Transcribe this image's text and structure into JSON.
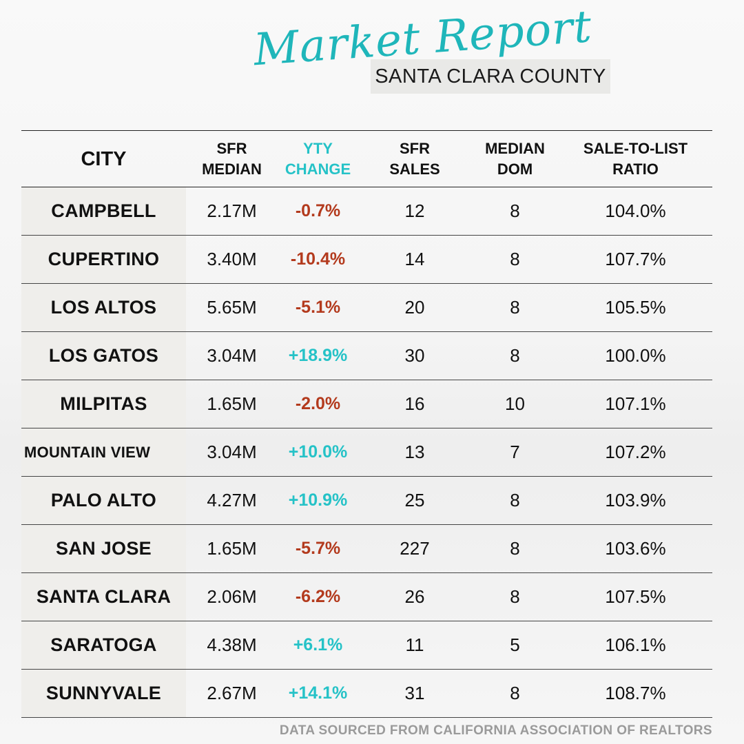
{
  "header": {
    "script_title": "Market Report",
    "subtitle": "SANTA CLARA COUNTY"
  },
  "columns": {
    "city": "CITY",
    "median_l1": "SFR",
    "median_l2": "MEDIAN",
    "yty_l1": "YTY",
    "yty_l2": "CHANGE",
    "sales_l1": "SFR",
    "sales_l2": "SALES",
    "dom_l1": "MEDIAN",
    "dom_l2": "DOM",
    "ratio_l1": "SALE-TO-LIST",
    "ratio_l2": "RATIO"
  },
  "rows": [
    {
      "city": "CAMPBELL",
      "median": "2.17M",
      "change": "-0.7%",
      "sales": "12",
      "dom": "8",
      "ratio": "104.0%"
    },
    {
      "city": "CUPERTINO",
      "median": "3.40M",
      "change": "-10.4%",
      "sales": "14",
      "dom": "8",
      "ratio": "107.7%"
    },
    {
      "city": "LOS ALTOS",
      "median": "5.65M",
      "change": "-5.1%",
      "sales": "20",
      "dom": "8",
      "ratio": "105.5%"
    },
    {
      "city": "LOS GATOS",
      "median": "3.04M",
      "change": "+18.9%",
      "sales": "30",
      "dom": "8",
      "ratio": "100.0%"
    },
    {
      "city": "MILPITAS",
      "median": "1.65M",
      "change": "-2.0%",
      "sales": "16",
      "dom": "10",
      "ratio": "107.1%"
    },
    {
      "city": "MOUNTAIN VIEW",
      "median": "3.04M",
      "change": "+10.0%",
      "sales": "13",
      "dom": "7",
      "ratio": "107.2%"
    },
    {
      "city": "PALO ALTO",
      "median": "4.27M",
      "change": "+10.9%",
      "sales": "25",
      "dom": "8",
      "ratio": "103.9%"
    },
    {
      "city": "SAN JOSE",
      "median": "1.65M",
      "change": "-5.7%",
      "sales": "227",
      "dom": "8",
      "ratio": "103.6%"
    },
    {
      "city": "SANTA CLARA",
      "median": "2.06M",
      "change": "-6.2%",
      "sales": "26",
      "dom": "8",
      "ratio": "107.5%"
    },
    {
      "city": "SARATOGA",
      "median": "4.38M",
      "change": "+6.1%",
      "sales": "11",
      "dom": "5",
      "ratio": "106.1%"
    },
    {
      "city": "SUNNYVALE",
      "median": "2.67M",
      "change": "+14.1%",
      "sales": "31",
      "dom": "8",
      "ratio": "108.7%"
    }
  ],
  "footer": {
    "source": "DATA SOURCED FROM CALIFORNIA ASSOCIATION OF REALTORS"
  },
  "colors": {
    "accent": "#25c2c7",
    "negative": "#b33a1d",
    "city_cell_bg": "#efeeeb"
  }
}
